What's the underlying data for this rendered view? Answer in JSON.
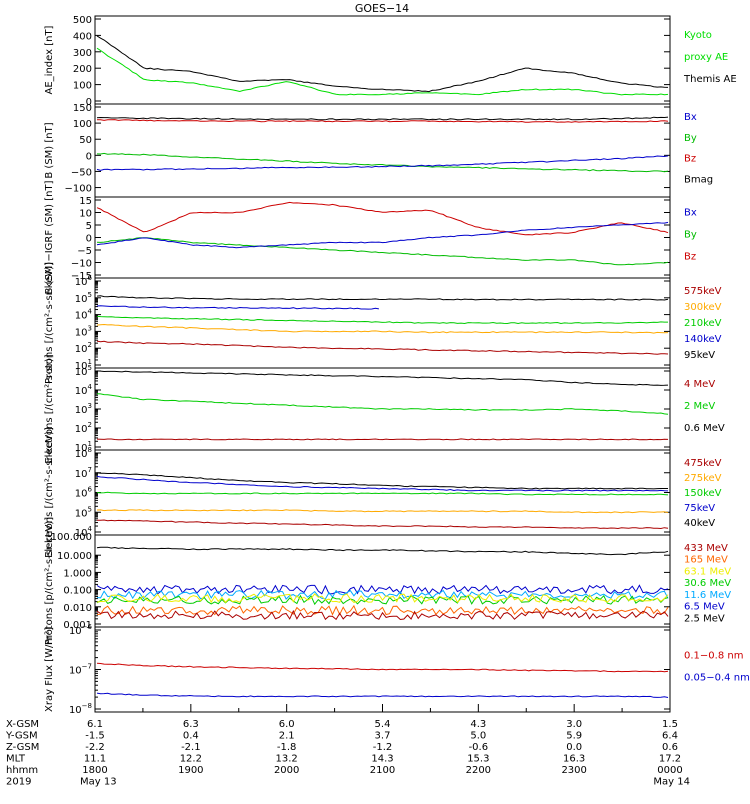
{
  "title": "GOES−14",
  "chart_data": [
    {
      "type": "line",
      "ylabel": "AE_index [nT]",
      "ylim": [
        0,
        500
      ],
      "yticks": [
        "500",
        "400",
        "300",
        "200",
        "100",
        "0"
      ],
      "x": [
        "1800",
        "1830",
        "1900",
        "1930",
        "2000",
        "2030",
        "2100",
        "2130",
        "2200",
        "2230",
        "2300",
        "2330",
        "0000"
      ],
      "legend": [
        {
          "text": "Kyoto",
          "color": "#00dd00"
        },
        {
          "text": "proxy AE",
          "color": "#00dd00"
        },
        {
          "text": "Themis AE",
          "color": "#000000"
        }
      ],
      "series": [
        {
          "name": "Themis AE",
          "color": "#000000",
          "values": [
            400,
            200,
            180,
            120,
            130,
            90,
            70,
            60,
            120,
            200,
            170,
            110,
            80
          ]
        },
        {
          "name": "Kyoto proxy AE",
          "color": "#00dd00",
          "values": [
            320,
            130,
            110,
            60,
            120,
            40,
            40,
            50,
            40,
            70,
            70,
            40,
            40
          ]
        }
      ]
    },
    {
      "type": "line",
      "ylabel": "B (SM) [nT]",
      "ylim": [
        -120,
        150
      ],
      "yticks": [
        "150",
        "100",
        "50",
        "0",
        "−50",
        "−100"
      ],
      "legend": [
        {
          "text": "Bx",
          "color": "#0000cc"
        },
        {
          "text": "By",
          "color": "#00bb00"
        },
        {
          "text": "Bz",
          "color": "#cc0000"
        },
        {
          "text": "Bmag",
          "color": "#000000"
        }
      ],
      "series": [
        {
          "name": "Bmag",
          "color": "#000000",
          "values": [
            118,
            115,
            114,
            113,
            112,
            112,
            112,
            112,
            112,
            112,
            112,
            114,
            118
          ]
        },
        {
          "name": "Bz",
          "color": "#cc0000",
          "values": [
            110,
            108,
            107,
            106,
            106,
            106,
            106,
            106,
            105,
            104,
            104,
            105,
            106
          ]
        },
        {
          "name": "By",
          "color": "#00bb00",
          "values": [
            5,
            2,
            -5,
            -12,
            -18,
            -25,
            -30,
            -35,
            -38,
            -42,
            -45,
            -48,
            -50
          ]
        },
        {
          "name": "Bx",
          "color": "#0000cc",
          "values": [
            -45,
            -44,
            -42,
            -40,
            -38,
            -37,
            -35,
            -32,
            -28,
            -22,
            -16,
            -10,
            -2
          ]
        }
      ]
    },
    {
      "type": "line",
      "ylabel": "B (SM)−IGRF (SM) [nT]",
      "ylim": [
        -15,
        15
      ],
      "yticks": [
        "15",
        "10",
        "5",
        "0",
        "−5",
        "−10",
        "−15"
      ],
      "legend": [
        {
          "text": "Bx",
          "color": "#0000cc"
        },
        {
          "text": "By",
          "color": "#00bb00"
        },
        {
          "text": "Bz",
          "color": "#cc0000"
        }
      ],
      "series": [
        {
          "name": "Bz",
          "color": "#cc0000",
          "values": [
            12,
            2,
            10,
            10,
            14,
            13,
            10,
            11,
            4,
            1,
            2,
            6,
            2
          ]
        },
        {
          "name": "By",
          "color": "#00bb00",
          "values": [
            -2,
            0,
            -2,
            -3,
            -4,
            -5,
            -6,
            -7,
            -8,
            -9,
            -9,
            -11,
            -10
          ]
        },
        {
          "name": "Bx",
          "color": "#0000cc",
          "values": [
            -3,
            0,
            -3,
            -4,
            -3,
            -2,
            -2,
            0,
            1,
            3,
            4,
            5,
            6
          ]
        }
      ]
    },
    {
      "type": "line",
      "log": true,
      "ylabel": "Protons [/(cm²-s-sr-keV)]",
      "ylim_exp": [
        1,
        6
      ],
      "yticks_exp": [
        6,
        5,
        4,
        3,
        2,
        1
      ],
      "legend": [
        {
          "text": "575keV",
          "color": "#aa0000"
        },
        {
          "text": "300keV",
          "color": "#ffaa00"
        },
        {
          "text": "210keV",
          "color": "#00cc00"
        },
        {
          "text": "140keV",
          "color": "#0000cc"
        },
        {
          "text": "95keV",
          "color": "#000000"
        }
      ],
      "series": [
        {
          "name": "95keV",
          "color": "#000000",
          "values_log": [
            5.1,
            5.0,
            4.95,
            4.93,
            4.92,
            4.92,
            4.92,
            4.92,
            4.9,
            4.9,
            4.9,
            4.9,
            4.9
          ]
        },
        {
          "name": "140keV",
          "color": "#0000cc",
          "values_log": [
            4.5,
            4.45,
            4.4,
            4.4,
            4.38,
            4.37,
            4.35,
            null,
            null,
            null,
            null,
            null,
            null
          ]
        },
        {
          "name": "210keV",
          "color": "#00cc00",
          "values_log": [
            3.9,
            3.8,
            3.75,
            3.7,
            3.65,
            3.6,
            3.55,
            3.5,
            3.5,
            3.5,
            3.5,
            3.5,
            3.55
          ]
        },
        {
          "name": "300keV",
          "color": "#ffaa00",
          "values_log": [
            3.4,
            3.3,
            3.2,
            3.1,
            3.0,
            3.0,
            3.0,
            2.95,
            2.95,
            2.95,
            2.95,
            2.95,
            2.9
          ]
        },
        {
          "name": "575keV",
          "color": "#aa0000",
          "values_log": [
            2.4,
            2.3,
            2.25,
            2.15,
            2.05,
            2.0,
            1.95,
            1.9,
            1.85,
            1.8,
            1.75,
            1.7,
            1.65
          ]
        }
      ]
    },
    {
      "type": "line",
      "log": true,
      "ylabel": "Electrons [/(cm²-s-sr)]",
      "ylim_exp": [
        1,
        5
      ],
      "yticks_exp": [
        5,
        4,
        3,
        2,
        1
      ],
      "legend": [
        {
          "text": "4 MeV",
          "color": "#aa0000"
        },
        {
          "text": "2 MeV",
          "color": "#00cc00"
        },
        {
          "text": "0.6 MeV",
          "color": "#000000"
        }
      ],
      "series": [
        {
          "name": "0.6 MeV",
          "color": "#000000",
          "values_log": [
            5.0,
            4.95,
            4.9,
            4.85,
            4.8,
            4.75,
            4.7,
            4.65,
            4.6,
            4.55,
            4.4,
            4.3,
            4.25
          ]
        },
        {
          "name": "2 MeV",
          "color": "#00cc00",
          "values_log": [
            3.8,
            3.5,
            3.4,
            3.3,
            3.2,
            3.1,
            3.0,
            3.0,
            2.95,
            2.95,
            3.0,
            2.9,
            2.75
          ]
        },
        {
          "name": "4 MeV",
          "color": "#aa0000",
          "values_log": [
            1.4,
            1.4,
            1.4,
            1.4,
            1.4,
            1.4,
            1.4,
            1.4,
            1.4,
            1.4,
            1.4,
            1.4,
            1.4
          ]
        }
      ]
    },
    {
      "type": "line",
      "log": true,
      "ylabel": "Electrons [/(cm²-s-sr-keV)]",
      "ylim_exp": [
        4,
        8
      ],
      "yticks_exp": [
        8,
        7,
        6,
        5,
        4
      ],
      "legend": [
        {
          "text": "475keV",
          "color": "#aa0000"
        },
        {
          "text": "275keV",
          "color": "#ffaa00"
        },
        {
          "text": "150keV",
          "color": "#00cc00"
        },
        {
          "text": "75keV",
          "color": "#0000cc"
        },
        {
          "text": "40keV",
          "color": "#000000"
        }
      ],
      "series": [
        {
          "name": "40keV",
          "color": "#000000",
          "values_log": [
            7.0,
            6.9,
            6.75,
            6.6,
            6.5,
            6.45,
            6.35,
            6.3,
            6.25,
            6.2,
            6.2,
            6.2,
            6.2
          ]
        },
        {
          "name": "75keV",
          "color": "#0000cc",
          "values_log": [
            6.8,
            6.65,
            6.5,
            6.4,
            6.3,
            6.25,
            6.2,
            6.15,
            6.1,
            6.1,
            6.1,
            6.1,
            6.1
          ]
        },
        {
          "name": "150keV",
          "color": "#00cc00",
          "values_log": [
            6.0,
            5.95,
            5.95,
            5.95,
            5.95,
            5.95,
            5.95,
            5.95,
            5.95,
            5.9,
            5.9,
            5.9,
            5.9
          ]
        },
        {
          "name": "275keV",
          "color": "#ffaa00",
          "values_log": [
            5.1,
            5.1,
            5.1,
            5.1,
            5.1,
            5.05,
            5.05,
            5.05,
            5.05,
            5.05,
            5.0,
            5.0,
            5.0
          ]
        },
        {
          "name": "475keV",
          "color": "#aa0000",
          "values_log": [
            4.6,
            4.55,
            4.5,
            4.45,
            4.4,
            4.35,
            4.3,
            4.3,
            4.25,
            4.25,
            4.2,
            4.2,
            4.2
          ]
        }
      ]
    },
    {
      "type": "line",
      "log": true,
      "ylabel": "Protons [p/(cm²-s-sr-keV)]",
      "ylim_exp": [
        -3,
        2
      ],
      "yticks": [
        "10.000",
        "1.000",
        "0.100",
        "0.010",
        "0.001"
      ],
      "yticks_at": [
        1,
        0,
        -1,
        -2,
        -3
      ],
      "yticks_top": "100.000",
      "legend": [
        {
          "text": "433 MeV",
          "color": "#aa0000"
        },
        {
          "text": "165 MeV",
          "color": "#ff6600"
        },
        {
          "text": "63.1 MeV",
          "color": "#eeee00"
        },
        {
          "text": "30.6 MeV",
          "color": "#00cc00"
        },
        {
          "text": "11.6 MeV",
          "color": "#00aaff"
        },
        {
          "text": "6.5 MeV",
          "color": "#0000cc"
        },
        {
          "text": "2.5 MeV",
          "color": "#000000"
        }
      ],
      "series": [
        {
          "name": "2.5 MeV",
          "color": "#000000",
          "values_log": [
            1.45,
            1.4,
            1.35,
            1.35,
            1.35,
            1.3,
            1.3,
            1.25,
            1.2,
            1.2,
            1.1,
            1.05,
            1.2
          ]
        },
        {
          "name": "6.5 MeV",
          "color": "#0000cc",
          "noisy": true,
          "values_log": [
            -1.0,
            -1.0,
            -1.0,
            -1.0,
            -1.0,
            -1.0,
            -1.0,
            -1.0,
            -1.0,
            -1.0,
            -1.0,
            -1.0,
            -1.0
          ]
        },
        {
          "name": "11.6 MeV",
          "color": "#00aaff",
          "noisy": true,
          "values_log": [
            -1.3,
            -1.3,
            -1.3,
            -1.3,
            -1.3,
            -1.3,
            -1.3,
            -1.3,
            -1.3,
            -1.3,
            -1.3,
            -1.3,
            -1.3
          ]
        },
        {
          "name": "30.6 MeV",
          "color": "#00cc00",
          "noisy": true,
          "values_log": [
            -1.6,
            -1.6,
            -1.6,
            -1.6,
            -1.6,
            -1.6,
            -1.6,
            -1.6,
            -1.6,
            -1.6,
            -1.6,
            -1.6,
            -1.6
          ]
        },
        {
          "name": "63.1 MeV",
          "color": "#eeee00",
          "noisy": true,
          "values_log": [
            -1.5,
            -1.5,
            -1.5,
            -1.5,
            -1.5,
            -1.5,
            -1.5,
            -1.5,
            -1.5,
            -1.5,
            -1.5,
            -1.5,
            -1.5
          ]
        },
        {
          "name": "165 MeV",
          "color": "#ff6600",
          "noisy": true,
          "values_log": [
            -2.2,
            -2.2,
            -2.2,
            -2.2,
            -2.2,
            -2.2,
            -2.2,
            -2.2,
            -2.2,
            -2.2,
            -2.2,
            -2.2,
            -2.2
          ]
        },
        {
          "name": "433 MeV",
          "color": "#aa0000",
          "noisy": true,
          "values_log": [
            -2.5,
            -2.5,
            -2.5,
            -2.5,
            -2.5,
            -2.5,
            -2.5,
            -2.5,
            -2.5,
            -2.5,
            -2.5,
            -2.5,
            -2.5
          ]
        }
      ]
    },
    {
      "type": "line",
      "log": true,
      "ylabel": "Xray Flux [W/m²]",
      "ylim_exp": [
        -8,
        -6
      ],
      "yticks_exp": [
        -6,
        -7,
        -8
      ],
      "legend": [
        {
          "text": "0.1−0.8 nm",
          "color": "#cc0000"
        },
        {
          "text": "0.05−0.4 nm",
          "color": "#0000cc"
        }
      ],
      "series": [
        {
          "name": "0.1−0.8 nm",
          "color": "#cc0000",
          "values_log": [
            -6.85,
            -6.9,
            -6.93,
            -6.95,
            -6.97,
            -6.98,
            -7.0,
            -7.0,
            -7.0,
            -7.02,
            -7.03,
            -7.05,
            -7.05
          ]
        },
        {
          "name": "0.05−0.4 nm",
          "color": "#0000cc",
          "values_log": [
            -7.6,
            -7.65,
            -7.67,
            -7.68,
            -7.68,
            -7.68,
            -7.68,
            -7.68,
            -7.68,
            -7.68,
            -7.68,
            -7.68,
            -7.7
          ]
        }
      ]
    }
  ],
  "footer": {
    "row_labels": [
      "X-GSM",
      "Y-GSM",
      "Z-GSM",
      "MLT",
      "hhmm",
      "2019"
    ],
    "columns": [
      [
        "6.1",
        "-1.5",
        "-2.2",
        "11.1",
        "1800",
        "May 13"
      ],
      [
        "6.3",
        "0.4",
        "-2.1",
        "12.2",
        "1900",
        ""
      ],
      [
        "6.0",
        "2.1",
        "-1.8",
        "13.2",
        "2000",
        ""
      ],
      [
        "5.4",
        "3.7",
        "-1.2",
        "14.3",
        "2100",
        ""
      ],
      [
        "4.3",
        "5.0",
        "-0.6",
        "15.3",
        "2200",
        ""
      ],
      [
        "3.0",
        "5.9",
        "0.0",
        "16.3",
        "2300",
        ""
      ],
      [
        "1.5",
        "6.4",
        "0.6",
        "17.2",
        "0000",
        "May 14"
      ]
    ]
  }
}
